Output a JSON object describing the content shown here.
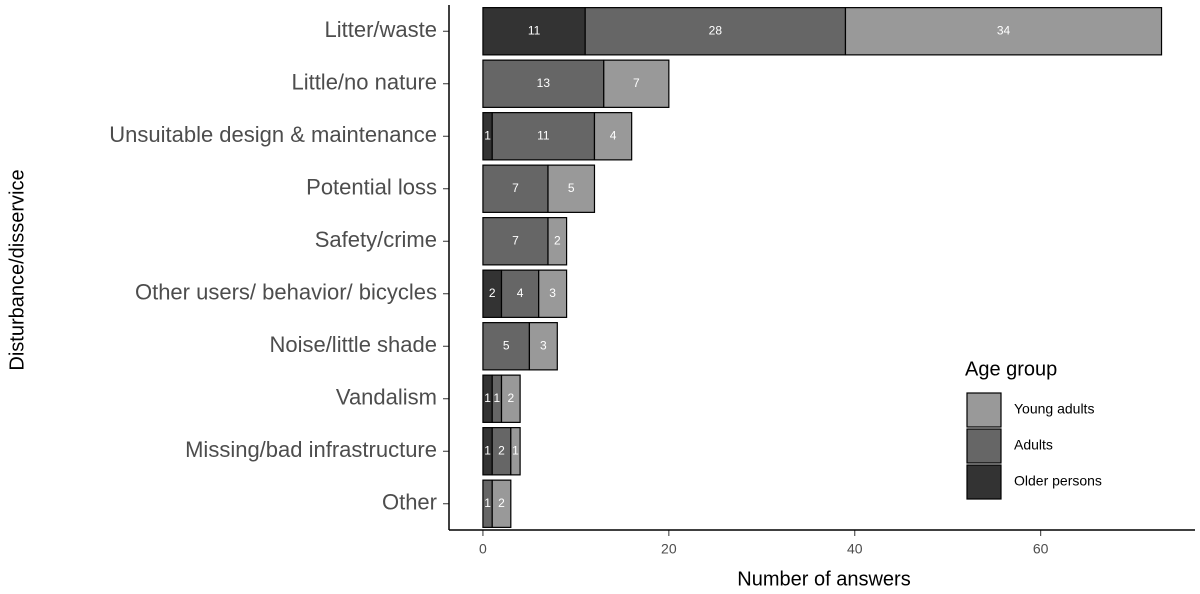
{
  "chart_data": {
    "type": "stacked-barh",
    "xlabel": "Number of answers",
    "ylabel": "Disturbance/disservice",
    "categories": [
      "Litter/waste",
      "Little/no nature",
      "Unsuitable design & maintenance",
      "Potential loss",
      "Safety/crime",
      "Other users/ behavior/ bicycles",
      "Noise/little shade",
      "Vandalism",
      "Missing/bad infrastructure",
      "Other"
    ],
    "series": [
      {
        "name": "Older persons",
        "color": "#333333",
        "values": [
          11,
          null,
          1,
          null,
          null,
          2,
          null,
          1,
          1,
          null
        ]
      },
      {
        "name": "Adults",
        "color": "#666666",
        "values": [
          28,
          13,
          11,
          7,
          7,
          4,
          5,
          1,
          2,
          1
        ]
      },
      {
        "name": "Young adults",
        "color": "#999999",
        "values": [
          34,
          7,
          4,
          5,
          2,
          3,
          3,
          2,
          1,
          2
        ]
      }
    ],
    "xlim": [
      -3.65,
      76.6
    ],
    "xticks": [
      0,
      20,
      40,
      60
    ],
    "legend_title": "Age group",
    "grid": false
  }
}
